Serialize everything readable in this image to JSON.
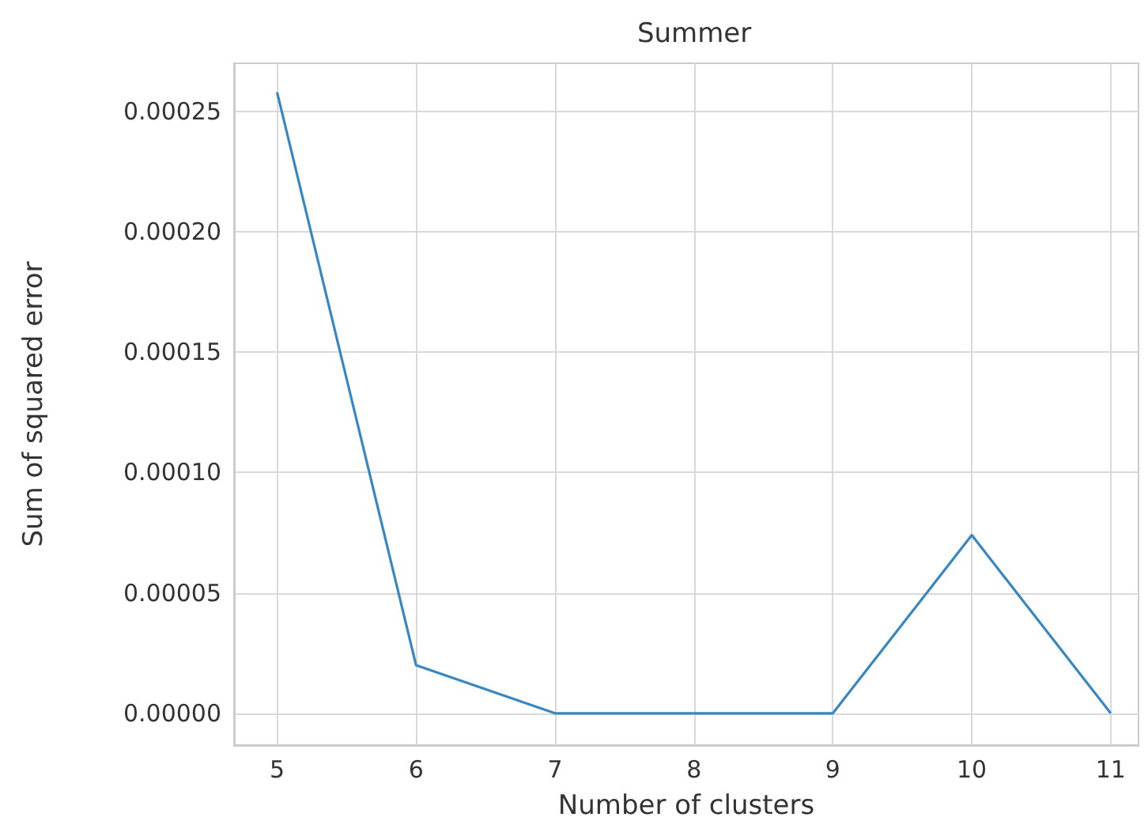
{
  "chart_data": {
    "type": "line",
    "title": "Summer",
    "xlabel": "Number of clusters",
    "ylabel": "Sum of squared error",
    "x": [
      5,
      6,
      7,
      8,
      9,
      10,
      11
    ],
    "series": [
      {
        "color": "#3787c0",
        "values": [
          0.000258,
          2e-05,
          0,
          0,
          0,
          7.4e-05,
          0
        ]
      }
    ],
    "xlim": [
      4.69,
      11.2
    ],
    "xticks": [
      5,
      6,
      7,
      8,
      9,
      10,
      11
    ],
    "ylim": [
      -1.32e-05,
      0.00027
    ],
    "yticks": [
      {
        "value": 0,
        "label": "0.00000"
      },
      {
        "value": 5e-05,
        "label": "0.00005"
      },
      {
        "value": 0.0001,
        "label": "0.00010"
      },
      {
        "value": 0.00015,
        "label": "0.00015"
      },
      {
        "value": 0.0002,
        "label": "0.00020"
      },
      {
        "value": 0.00025,
        "label": "0.00025"
      }
    ],
    "grid": true,
    "marker": "none",
    "line_style": "solid"
  }
}
